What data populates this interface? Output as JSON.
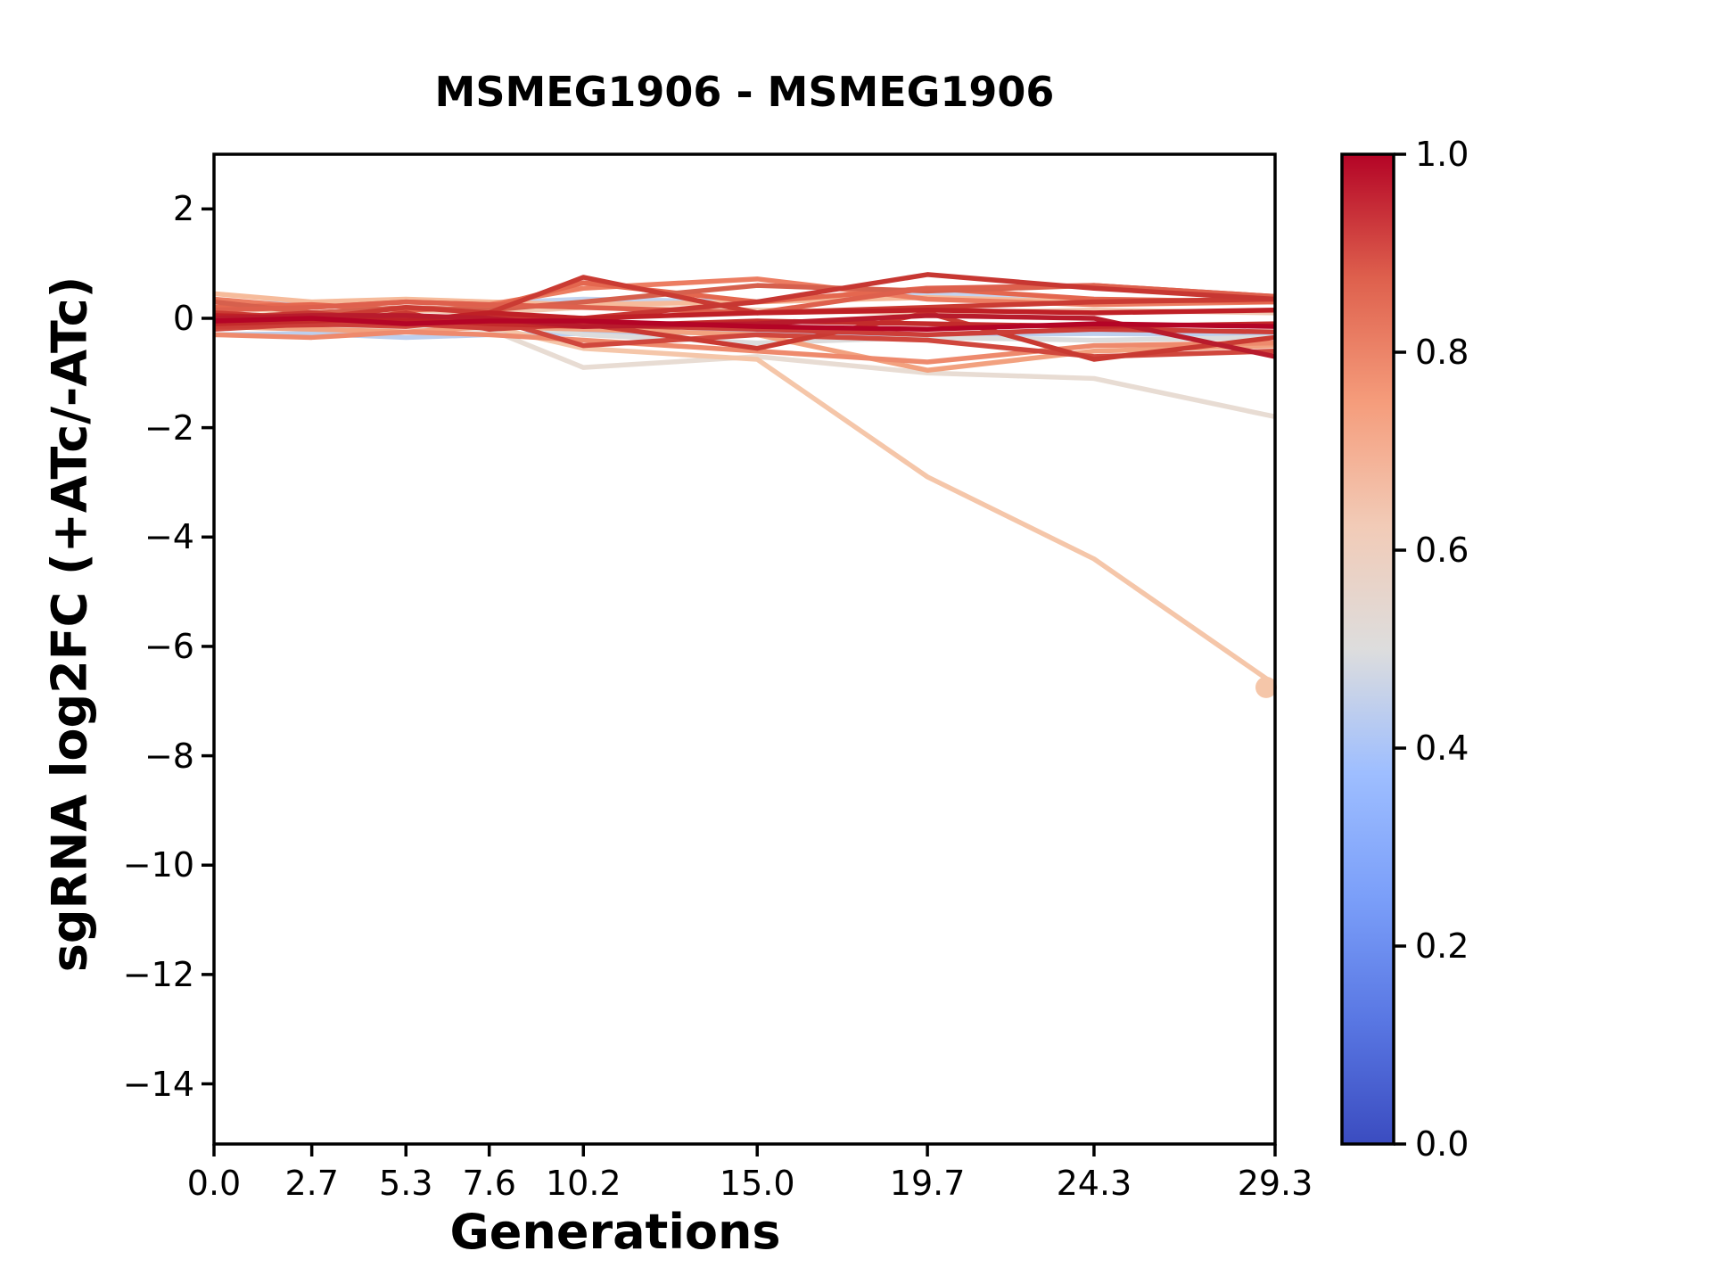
{
  "title": "MSMEG1906 - MSMEG1906",
  "x_axis_label": "Generations",
  "y_axis_label": "sgRNA log2FC (+ATc/-ATc)",
  "colors": {
    "background": "#ffffff",
    "spine": "#000000",
    "text": "#000000"
  },
  "chart_data": {
    "type": "line",
    "title": "MSMEG1906 - MSMEG1906",
    "xlabel": "Generations",
    "ylabel": "sgRNA log2FC (+ATc/-ATc)",
    "xlim": [
      0.0,
      29.3
    ],
    "ylim": [
      -15.1,
      3.0
    ],
    "grid": false,
    "x": [
      0.0,
      2.7,
      5.3,
      7.6,
      10.2,
      15.0,
      19.7,
      24.3,
      29.3
    ],
    "xtick_labels": [
      "0.0",
      "2.7",
      "5.3",
      "7.6",
      "10.2",
      "15.0",
      "19.7",
      "24.3",
      "29.3"
    ],
    "ytick_values": [
      2,
      0,
      -2,
      -4,
      -6,
      -8,
      -10,
      -12,
      -14
    ],
    "ytick_labels": [
      "2",
      "0",
      "−2",
      "−4",
      "−6",
      "−8",
      "−10",
      "−12",
      "−14"
    ],
    "series": [
      {
        "color": "#c3d4f0",
        "marker_end": false,
        "values": [
          0.3,
          0.25,
          0.3,
          0.28,
          0.35,
          0.3,
          0.45,
          0.35,
          0.3
        ]
      },
      {
        "color": "#bccfee",
        "marker_end": false,
        "values": [
          -0.3,
          -0.28,
          -0.35,
          -0.3,
          -0.28,
          -0.25,
          -0.3,
          -0.28,
          -0.3
        ]
      },
      {
        "color": "#dcdcdc",
        "marker_end": false,
        "values": [
          0.0,
          -0.05,
          0.05,
          -0.05,
          -0.3,
          -0.45,
          -0.35,
          -0.4,
          -0.35
        ]
      },
      {
        "color": "#e8dcd3",
        "marker_end": false,
        "values": [
          -0.1,
          -0.2,
          -0.15,
          -0.2,
          -0.9,
          -0.7,
          -1.0,
          -1.1,
          -1.8
        ]
      },
      {
        "color": "#f2cbb3",
        "marker_end": false,
        "values": [
          0.2,
          0.1,
          0.15,
          0.1,
          0.2,
          0.15,
          0.1,
          0.15,
          0.1
        ]
      },
      {
        "color": "#f5c6a9",
        "marker_end": true,
        "values": [
          0.1,
          0.0,
          -0.1,
          -0.15,
          -0.55,
          -0.75,
          -2.9,
          -4.4,
          -6.7
        ]
      },
      {
        "color": "#f6bb9b",
        "marker_end": false,
        "values": [
          0.45,
          0.3,
          0.35,
          0.3,
          0.25,
          0.3,
          0.38,
          0.3,
          0.35
        ]
      },
      {
        "color": "#f2a17f",
        "marker_end": false,
        "values": [
          -0.15,
          -0.2,
          -0.25,
          -0.15,
          -0.2,
          -0.3,
          -0.95,
          -0.6,
          -0.5
        ]
      },
      {
        "color": "#ee8a6d",
        "marker_end": false,
        "values": [
          -0.3,
          -0.35,
          -0.25,
          -0.3,
          -0.4,
          -0.6,
          -0.8,
          -0.5,
          -0.45
        ]
      },
      {
        "color": "#ec7d62",
        "marker_end": false,
        "values": [
          0.35,
          0.2,
          0.3,
          0.25,
          0.55,
          0.72,
          0.35,
          0.25,
          0.3
        ]
      },
      {
        "color": "#e4674f",
        "marker_end": false,
        "values": [
          0.2,
          0.25,
          0.15,
          0.2,
          0.65,
          0.3,
          0.55,
          0.35,
          0.3
        ]
      },
      {
        "color": "#d6604d",
        "marker_end": false,
        "values": [
          0.3,
          0.1,
          0.2,
          0.15,
          0.3,
          0.6,
          0.5,
          0.6,
          0.4
        ]
      },
      {
        "color": "#de604d",
        "marker_end": false,
        "values": [
          0.15,
          0.2,
          0.3,
          0.25,
          0.2,
          0.1,
          0.55,
          0.6,
          0.4
        ]
      },
      {
        "color": "#d0473d",
        "marker_end": false,
        "values": [
          -0.2,
          -0.1,
          -0.15,
          0.0,
          -0.5,
          -0.3,
          -0.4,
          -0.7,
          -0.6
        ]
      },
      {
        "color": "#ca3b33",
        "marker_end": false,
        "values": [
          0.1,
          0.0,
          0.2,
          0.1,
          0.75,
          0.1,
          0.2,
          0.3,
          0.35
        ]
      },
      {
        "color": "#c73732",
        "marker_end": false,
        "values": [
          0.0,
          0.1,
          -0.05,
          0.05,
          0.0,
          0.3,
          0.8,
          0.55,
          0.35
        ]
      },
      {
        "color": "#c93a32",
        "marker_end": false,
        "values": [
          0.05,
          -0.1,
          0.1,
          -0.2,
          -0.1,
          -0.55,
          0.1,
          -0.75,
          -0.35
        ]
      },
      {
        "color": "#cc3e38",
        "marker_end": false,
        "values": [
          -0.15,
          -0.12,
          -0.1,
          -0.18,
          -0.12,
          -0.2,
          -0.3,
          -0.2,
          -0.25
        ]
      },
      {
        "color": "#c32b2b",
        "marker_end": false,
        "values": [
          -0.1,
          -0.05,
          0.0,
          -0.1,
          -0.15,
          -0.05,
          -0.1,
          -0.15,
          -0.1
        ]
      },
      {
        "color": "#bf2026",
        "marker_end": false,
        "values": [
          0.05,
          0.0,
          -0.05,
          0.1,
          0.0,
          0.1,
          0.15,
          0.1,
          0.15
        ]
      },
      {
        "color": "#b81b2c",
        "marker_end": false,
        "values": [
          0.0,
          0.05,
          0.05,
          0.0,
          -0.15,
          -0.1,
          0.05,
          0.0,
          -0.7
        ]
      },
      {
        "color": "#b40426",
        "marker_end": false,
        "values": [
          -0.05,
          0.0,
          -0.1,
          -0.05,
          -0.05,
          -0.15,
          -0.2,
          -0.1,
          -0.15
        ]
      }
    ],
    "colorbar": {
      "cmap": "coolwarm",
      "min": 0.0,
      "max": 1.0,
      "tick_labels": [
        "1.0",
        "0.8",
        "0.6",
        "0.4",
        "0.2",
        "0.0"
      ],
      "tick_values": [
        1.0,
        0.8,
        0.6,
        0.4,
        0.2,
        0.0
      ],
      "gradient_stops": [
        {
          "t": 0.0,
          "color": "#3b4cc0"
        },
        {
          "t": 0.125,
          "color": "#5977e3"
        },
        {
          "t": 0.25,
          "color": "#7b9ff9"
        },
        {
          "t": 0.375,
          "color": "#9ebeff"
        },
        {
          "t": 0.5,
          "color": "#dddddd"
        },
        {
          "t": 0.625,
          "color": "#f2cbb7"
        },
        {
          "t": 0.75,
          "color": "#f59c7b"
        },
        {
          "t": 0.875,
          "color": "#de604d"
        },
        {
          "t": 1.0,
          "color": "#b40426"
        }
      ]
    }
  }
}
